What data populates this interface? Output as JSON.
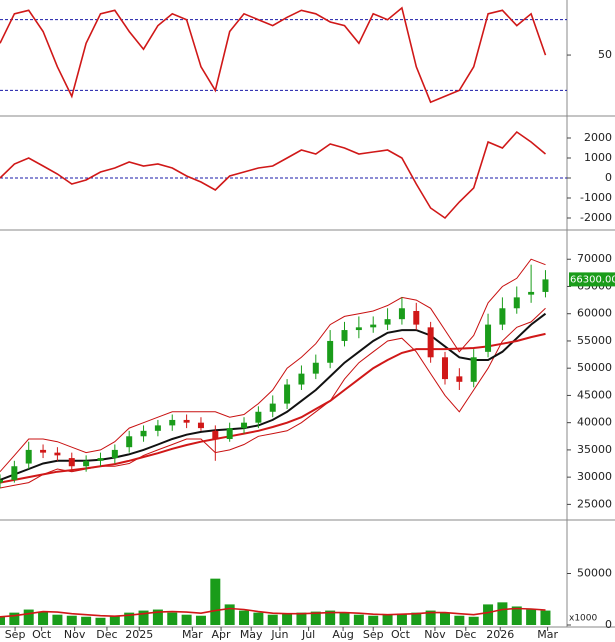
{
  "chart_data": [
    {
      "type": "line",
      "x": [
        0,
        2,
        4,
        6,
        8,
        10,
        12,
        14,
        16,
        18,
        20,
        22,
        24,
        26,
        28,
        30,
        32,
        34,
        36,
        38,
        40,
        42,
        44,
        46,
        48,
        50,
        52,
        54,
        56,
        58,
        60,
        62,
        64,
        66,
        68,
        70,
        72,
        74,
        76
      ],
      "xlim": [
        0,
        79
      ],
      "ylim": [
        0,
        95
      ],
      "yticks": [
        50
      ],
      "levels": [
        80,
        20
      ],
      "level_color": "#1a1aa8",
      "series": [
        {
          "color": "#d01818",
          "values": [
            60,
            85,
            88,
            70,
            40,
            15,
            60,
            85,
            88,
            70,
            55,
            75,
            85,
            80,
            40,
            20,
            70,
            85,
            80,
            75,
            82,
            88,
            85,
            78,
            75,
            60,
            85,
            80,
            90,
            40,
            10,
            15,
            20,
            40,
            85,
            88,
            75,
            85,
            50
          ]
        }
      ]
    },
    {
      "type": "line",
      "x": [
        0,
        2,
        4,
        6,
        8,
        10,
        12,
        14,
        16,
        18,
        20,
        22,
        24,
        26,
        28,
        30,
        32,
        34,
        36,
        38,
        40,
        42,
        44,
        46,
        48,
        50,
        52,
        54,
        56,
        58,
        60,
        62,
        64,
        66,
        68,
        70,
        72,
        74,
        76
      ],
      "xlim": [
        0,
        79
      ],
      "ylim": [
        -2500,
        3000
      ],
      "yticks": [
        -2000,
        -1000,
        0,
        1000,
        2000
      ],
      "levels": [
        0
      ],
      "level_color": "#1a1aa8",
      "series": [
        {
          "color": "#d01818",
          "values": [
            0,
            700,
            1000,
            600,
            200,
            -300,
            -100,
            300,
            500,
            800,
            600,
            700,
            500,
            100,
            -200,
            -600,
            100,
            300,
            500,
            600,
            1000,
            1400,
            1200,
            1700,
            1500,
            1200,
            1300,
            1400,
            1000,
            -300,
            -1500,
            -2000,
            -1200,
            -500,
            1800,
            1500,
            2300,
            1800,
            1200
          ]
        }
      ]
    },
    {
      "type": "candlestick",
      "x": [
        0,
        2,
        4,
        6,
        8,
        10,
        12,
        14,
        16,
        18,
        20,
        22,
        24,
        26,
        28,
        30,
        32,
        34,
        36,
        38,
        40,
        42,
        44,
        46,
        48,
        50,
        52,
        54,
        56,
        58,
        60,
        62,
        64,
        66,
        68,
        70,
        72,
        74,
        76
      ],
      "xlim": [
        0,
        79
      ],
      "ylim": [
        22500,
        75000
      ],
      "yticks": [
        25000,
        30000,
        35000,
        40000,
        45000,
        50000,
        55000,
        60000,
        65000,
        70000
      ],
      "up_color": "#1a9c1a",
      "down_color": "#d01818",
      "last_label": "66300.00",
      "open": [
        29000,
        29500,
        32500,
        35000,
        34500,
        33500,
        32000,
        33000,
        33500,
        35500,
        37500,
        38500,
        39500,
        40500,
        40000,
        38500,
        37000,
        39000,
        40000,
        42000,
        43500,
        47000,
        49000,
        51000,
        55000,
        57000,
        57500,
        58000,
        59000,
        60500,
        57500,
        52000,
        48500,
        47500,
        53000,
        58000,
        61000,
        63500,
        64000
      ],
      "high": [
        30500,
        33000,
        36500,
        36000,
        35500,
        34500,
        34000,
        34500,
        36000,
        38500,
        39500,
        40500,
        41500,
        41500,
        41000,
        39500,
        40000,
        41000,
        43000,
        45000,
        48000,
        50500,
        52500,
        57000,
        58500,
        59500,
        59500,
        61000,
        63000,
        62000,
        58500,
        53000,
        50000,
        53500,
        60000,
        63000,
        65000,
        69000,
        68000
      ],
      "low": [
        28000,
        29000,
        31500,
        33500,
        33000,
        31000,
        31000,
        32000,
        32500,
        34500,
        36500,
        37500,
        38500,
        39000,
        38500,
        33000,
        36500,
        38000,
        39000,
        41000,
        42500,
        46000,
        48000,
        50000,
        54000,
        55500,
        56500,
        57000,
        58000,
        57000,
        51000,
        47000,
        46000,
        46500,
        52000,
        57000,
        60000,
        62000,
        63000
      ],
      "close": [
        29500,
        32000,
        35000,
        34500,
        34000,
        32000,
        33000,
        33500,
        35000,
        37500,
        38500,
        39500,
        40500,
        40000,
        39000,
        37000,
        39000,
        40000,
        42000,
        43500,
        47000,
        49000,
        51000,
        55000,
        57000,
        57500,
        58000,
        59000,
        61000,
        58000,
        52000,
        48000,
        47500,
        52000,
        58000,
        61000,
        63000,
        64000,
        66300
      ],
      "series": [
        {
          "color": "#c81010",
          "width": 1,
          "values": [
            31000,
            34000,
            37000,
            37000,
            36500,
            35500,
            34500,
            35000,
            36500,
            39000,
            40000,
            41000,
            42000,
            42000,
            42000,
            42000,
            41000,
            41500,
            43500,
            46000,
            50000,
            52000,
            54500,
            58000,
            59500,
            60000,
            60500,
            61500,
            63000,
            62500,
            61000,
            57000,
            53000,
            56000,
            62000,
            65000,
            66500,
            70000,
            69000
          ]
        },
        {
          "color": "#c81010",
          "width": 1,
          "values": [
            28000,
            28500,
            29000,
            30500,
            31500,
            31000,
            31500,
            32000,
            32000,
            32500,
            34000,
            35000,
            36000,
            37000,
            37000,
            34500,
            35000,
            36000,
            37500,
            38000,
            38500,
            40000,
            42000,
            44000,
            48000,
            51000,
            53000,
            55000,
            55500,
            53000,
            49000,
            45000,
            42000,
            46000,
            50000,
            55000,
            57500,
            58500,
            61000
          ]
        },
        {
          "color": "#111111",
          "width": 2,
          "values": [
            29500,
            30500,
            31500,
            32500,
            33000,
            33000,
            33000,
            33200,
            33600,
            34200,
            35000,
            36000,
            37000,
            37800,
            38300,
            38600,
            38800,
            39000,
            39500,
            40500,
            42000,
            44000,
            46000,
            48500,
            51000,
            53000,
            55000,
            56500,
            57000,
            57000,
            56000,
            54000,
            52000,
            51500,
            51500,
            53000,
            55500,
            58000,
            60000
          ]
        },
        {
          "color": "#d01818",
          "width": 2,
          "values": [
            29000,
            29500,
            30000,
            30500,
            31000,
            31300,
            31600,
            32000,
            32400,
            33000,
            33700,
            34400,
            35200,
            35900,
            36500,
            37000,
            37500,
            38000,
            38500,
            39200,
            40000,
            41000,
            42500,
            44000,
            46000,
            48000,
            50000,
            51500,
            52800,
            53500,
            53500,
            53500,
            53600,
            53700,
            54000,
            54500,
            55000,
            55700,
            56300
          ]
        }
      ]
    },
    {
      "type": "bar",
      "x": [
        0,
        2,
        4,
        6,
        8,
        10,
        12,
        14,
        16,
        18,
        20,
        22,
        24,
        26,
        28,
        30,
        32,
        34,
        36,
        38,
        40,
        42,
        44,
        46,
        48,
        50,
        52,
        54,
        56,
        58,
        60,
        62,
        64,
        66,
        68,
        70,
        72,
        74,
        76
      ],
      "xlim": [
        0,
        79
      ],
      "ylim": [
        0,
        100000
      ],
      "yticks": [
        0,
        50000
      ],
      "unit_label": "x1000",
      "color": "#1a9c1a",
      "values": [
        8000,
        12000,
        15000,
        13000,
        10000,
        9000,
        8000,
        7000,
        9000,
        12000,
        14000,
        15000,
        12000,
        10000,
        9000,
        45000,
        20000,
        14000,
        12000,
        10000,
        11000,
        12000,
        13000,
        14000,
        12000,
        10000,
        9000,
        10000,
        11000,
        12000,
        14000,
        12000,
        9000,
        8000,
        20000,
        22000,
        18000,
        15000,
        14000
      ],
      "series": [
        {
          "color": "#d01818",
          "values": [
            8000,
            9000,
            11000,
            13000,
            12500,
            11000,
            10000,
            9000,
            8500,
            9500,
            11000,
            12500,
            13000,
            12500,
            11500,
            14000,
            16000,
            15000,
            13000,
            11500,
            11000,
            11000,
            11500,
            12000,
            12000,
            11500,
            10500,
            10000,
            10500,
            11000,
            12000,
            12000,
            11000,
            10000,
            12000,
            15000,
            16000,
            15500,
            14500
          ]
        }
      ],
      "xticks": [
        {
          "value": 2.1,
          "label": "Sep"
        },
        {
          "value": 5.8,
          "label": "Oct"
        },
        {
          "value": 10.4,
          "label": "Nov"
        },
        {
          "value": 14.9,
          "label": "Dec"
        },
        {
          "value": 19.4,
          "label": "2025"
        },
        {
          "value": 26.8,
          "label": "Mar"
        },
        {
          "value": 30.8,
          "label": "Apr"
        },
        {
          "value": 35,
          "label": "May"
        },
        {
          "value": 39,
          "label": "Jun"
        },
        {
          "value": 43,
          "label": "Jul"
        },
        {
          "value": 47.8,
          "label": "Aug"
        },
        {
          "value": 52,
          "label": "Sep"
        },
        {
          "value": 55.8,
          "label": "Oct"
        },
        {
          "value": 60.6,
          "label": "Nov"
        },
        {
          "value": 64.9,
          "label": "Dec"
        },
        {
          "value": 69.7,
          "label": "2026"
        },
        {
          "value": 76.3,
          "label": "Mar"
        }
      ]
    }
  ]
}
